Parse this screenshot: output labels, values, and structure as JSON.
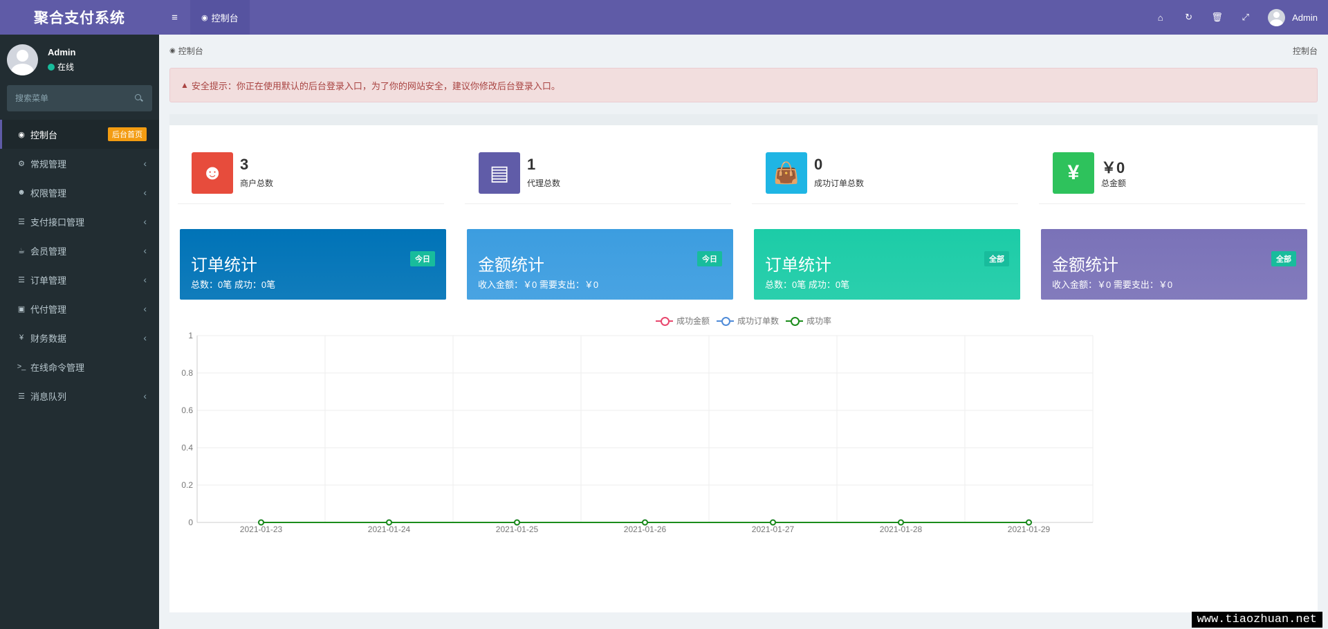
{
  "app": {
    "title": "聚合支付系统"
  },
  "user": {
    "name": "Admin",
    "status": "在线"
  },
  "search": {
    "placeholder": "搜索菜单"
  },
  "sidebar": {
    "items": [
      {
        "icon": "dashboard-icon",
        "glyph": "◉",
        "label": "控制台",
        "badge": "后台首页",
        "active": true
      },
      {
        "icon": "cogs-icon",
        "glyph": "⚙",
        "label": "常规管理",
        "chevron": "‹"
      },
      {
        "icon": "users-icon",
        "glyph": "☻",
        "label": "权限管理",
        "chevron": "‹"
      },
      {
        "icon": "list-icon",
        "glyph": "☰",
        "label": "支付接口管理",
        "chevron": "‹"
      },
      {
        "icon": "coffee-icon",
        "glyph": "☕",
        "label": "会员管理",
        "chevron": "‹"
      },
      {
        "icon": "list-alt-icon",
        "glyph": "☰",
        "label": "订单管理",
        "chevron": "‹"
      },
      {
        "icon": "money-icon",
        "glyph": "▣",
        "label": "代付管理",
        "chevron": "‹"
      },
      {
        "icon": "yen-icon",
        "glyph": "¥",
        "label": "财务数据",
        "chevron": "‹"
      },
      {
        "icon": "terminal-icon",
        "glyph": ">_",
        "label": "在线命令管理",
        "chevron": ""
      },
      {
        "icon": "list-icon",
        "glyph": "☰",
        "label": "消息队列",
        "chevron": "‹"
      }
    ]
  },
  "header": {
    "toggle_glyph": "≡",
    "tab_label": "控制台",
    "tab_glyph": "◉",
    "icons": [
      {
        "name": "home-icon",
        "glyph": "⌂"
      },
      {
        "name": "refresh-icon",
        "glyph": "↻"
      },
      {
        "name": "trash-icon",
        "glyph": "🗑"
      },
      {
        "name": "fullscreen-icon",
        "glyph": "⤢"
      }
    ],
    "user_name": "Admin"
  },
  "breadcrumb": {
    "left": "控制台",
    "right": "控制台"
  },
  "alert": {
    "text": "安全提示：你正在使用默认的后台登录入口，为了你的网站安全，建议你修改后台登录入口。"
  },
  "info_boxes": [
    {
      "value": "3",
      "label": "商户总数",
      "color": "#e74c3c",
      "icon": "users-icon",
      "glyph": "☻"
    },
    {
      "value": "1",
      "label": "代理总数",
      "color": "#605ca8",
      "icon": "vcard-icon",
      "glyph": "▤"
    },
    {
      "value": "0",
      "label": "成功订单总数",
      "color": "#1fb5e4",
      "icon": "shopping-bag-icon",
      "glyph": "👜"
    },
    {
      "value": "￥0",
      "label": "总金额",
      "color": "#2ec25c",
      "icon": "yen-icon",
      "glyph": "¥"
    }
  ],
  "stat_cards": [
    {
      "title": "订单统计",
      "badge": "今日",
      "detail": "总数：0笔 成功：0笔",
      "color": "#0073b7"
    },
    {
      "title": "金额统计",
      "badge": "今日",
      "detail": "收入金额：￥0 需要支出：￥0",
      "color": "#3c9de0"
    },
    {
      "title": "订单统计",
      "badge": "全部",
      "detail": "总数：0笔 成功：0笔",
      "color": "#1ccca7"
    },
    {
      "title": "金额统计",
      "badge": "全部",
      "detail": "收入金额：￥0 需要支出：￥0",
      "color": "#7a72b8"
    }
  ],
  "chart_data": {
    "type": "line",
    "x": [
      "2021-01-23",
      "2021-01-24",
      "2021-01-25",
      "2021-01-26",
      "2021-01-27",
      "2021-01-28",
      "2021-01-29"
    ],
    "series": [
      {
        "name": "成功金额",
        "values": [
          0,
          0,
          0,
          0,
          0,
          0,
          0
        ],
        "color": "#e8476d"
      },
      {
        "name": "成功订单数",
        "values": [
          0,
          0,
          0,
          0,
          0,
          0,
          0
        ],
        "color": "#4f8bd8"
      },
      {
        "name": "成功率",
        "values": [
          0,
          0,
          0,
          0,
          0,
          0,
          0
        ],
        "color": "#1b8c1b"
      }
    ],
    "ylim": [
      0,
      1
    ],
    "yticks": [
      0,
      0.2,
      0.4,
      0.6,
      0.8,
      1
    ],
    "grid": true,
    "legend": "top-center"
  },
  "watermark": "www.tiaozhuan.net"
}
